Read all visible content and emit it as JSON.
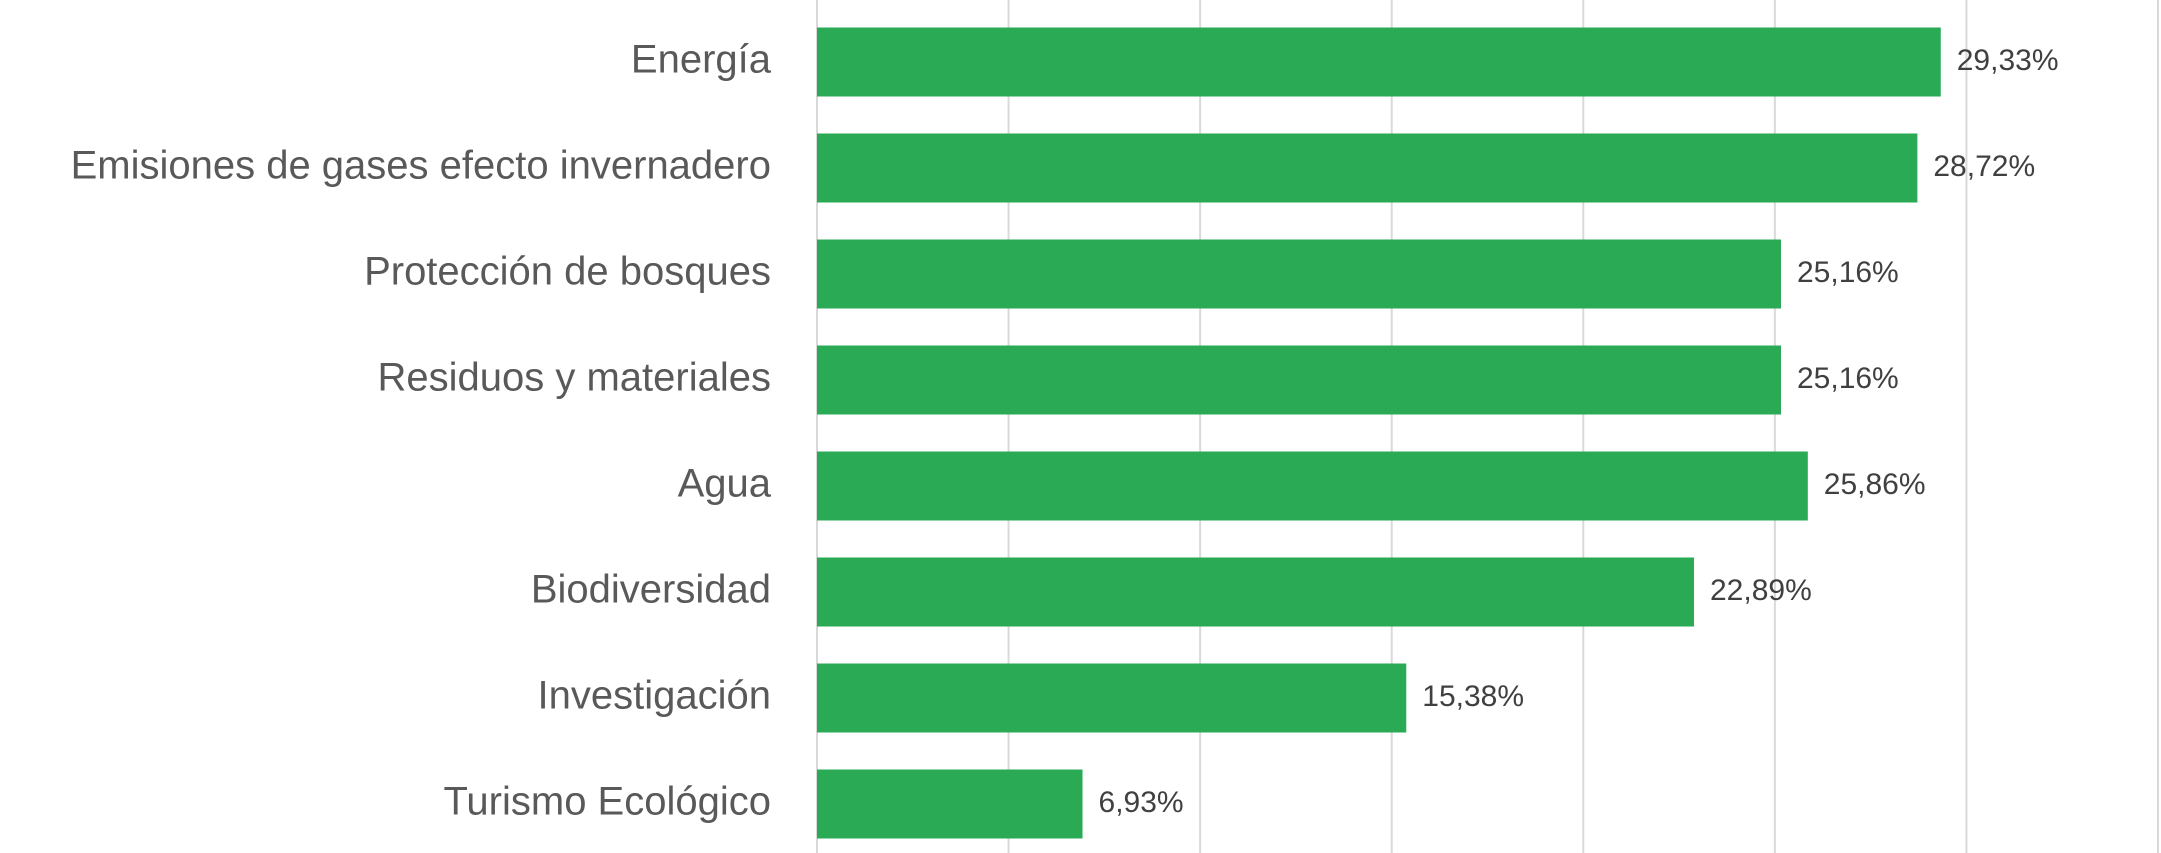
{
  "chart_data": {
    "type": "bar",
    "orientation": "horizontal",
    "categories": [
      "Energía",
      "Emisiones de gases efecto invernadero",
      "Protección de bosques",
      "Residuos y materiales",
      "Agua",
      "Biodiversidad",
      "Investigación",
      "Turismo Ecológico"
    ],
    "values": [
      29.33,
      28.72,
      25.16,
      25.16,
      25.86,
      22.89,
      15.38,
      6.93
    ],
    "value_labels": [
      "29,33%",
      "28,72%",
      "25,16%",
      "25,16%",
      "25,86%",
      "22,89%",
      "15,38%",
      "6,93%"
    ],
    "color": "#2aaa55",
    "xlim": [
      0,
      35
    ],
    "xticks": [
      0,
      5,
      10,
      15,
      20,
      25,
      30,
      35
    ],
    "grid": true
  }
}
